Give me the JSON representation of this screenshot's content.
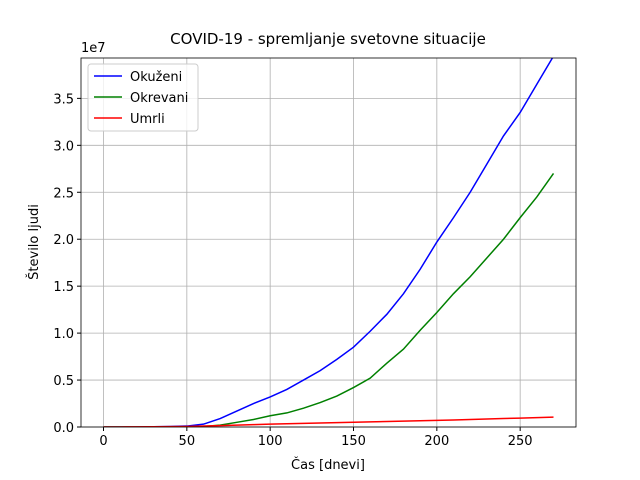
{
  "chart_data": {
    "type": "line",
    "title": "COVID-19 - spremljanje svetovne situacije",
    "xlabel": "Čas [dnevi]",
    "ylabel": "Število ljudi",
    "y_offset_text": "1e7",
    "x": [
      0,
      10,
      20,
      30,
      40,
      50,
      60,
      70,
      80,
      90,
      100,
      110,
      120,
      130,
      140,
      150,
      160,
      170,
      180,
      190,
      200,
      210,
      220,
      230,
      240,
      250,
      260,
      270
    ],
    "series": [
      {
        "name": "Okuženi",
        "color": "#0000ff",
        "values": [
          0,
          1000,
          5000,
          20000,
          50000,
          100000,
          300000,
          900000,
          1700000,
          2500000,
          3200000,
          4000000,
          5000000,
          6000000,
          7200000,
          8500000,
          10200000,
          12000000,
          14200000,
          16800000,
          19700000,
          22300000,
          25000000,
          28000000,
          31000000,
          33500000,
          36500000,
          39500000
        ]
      },
      {
        "name": "Okrevani",
        "color": "#008000",
        "values": [
          0,
          0,
          0,
          0,
          0,
          5000,
          50000,
          200000,
          500000,
          800000,
          1200000,
          1500000,
          2000000,
          2600000,
          3300000,
          4200000,
          5200000,
          6800000,
          8300000,
          10300000,
          12200000,
          14200000,
          16000000,
          18000000,
          20000000,
          22300000,
          24500000,
          27000000
        ]
      },
      {
        "name": "Umrli",
        "color": "#ff0000",
        "values": [
          0,
          5000,
          10000,
          20000,
          40000,
          60000,
          100000,
          150000,
          200000,
          250000,
          300000,
          340000,
          380000,
          420000,
          460000,
          500000,
          540000,
          580000,
          620000,
          660000,
          700000,
          750000,
          800000,
          850000,
          900000,
          950000,
          1000000,
          1050000
        ]
      }
    ],
    "xlim": [
      -13.5,
      283.5
    ],
    "ylim": [
      0,
      39300000
    ],
    "xticks": [
      0,
      50,
      100,
      150,
      200,
      250
    ],
    "yticks": [
      {
        "value": 0,
        "label": "0.0"
      },
      {
        "value": 5000000,
        "label": "0.5"
      },
      {
        "value": 10000000,
        "label": "1.0"
      },
      {
        "value": 15000000,
        "label": "1.5"
      },
      {
        "value": 20000000,
        "label": "2.0"
      },
      {
        "value": 25000000,
        "label": "2.5"
      },
      {
        "value": 30000000,
        "label": "3.0"
      },
      {
        "value": 35000000,
        "label": "3.5"
      }
    ],
    "grid": true,
    "legend": "upper-left"
  }
}
